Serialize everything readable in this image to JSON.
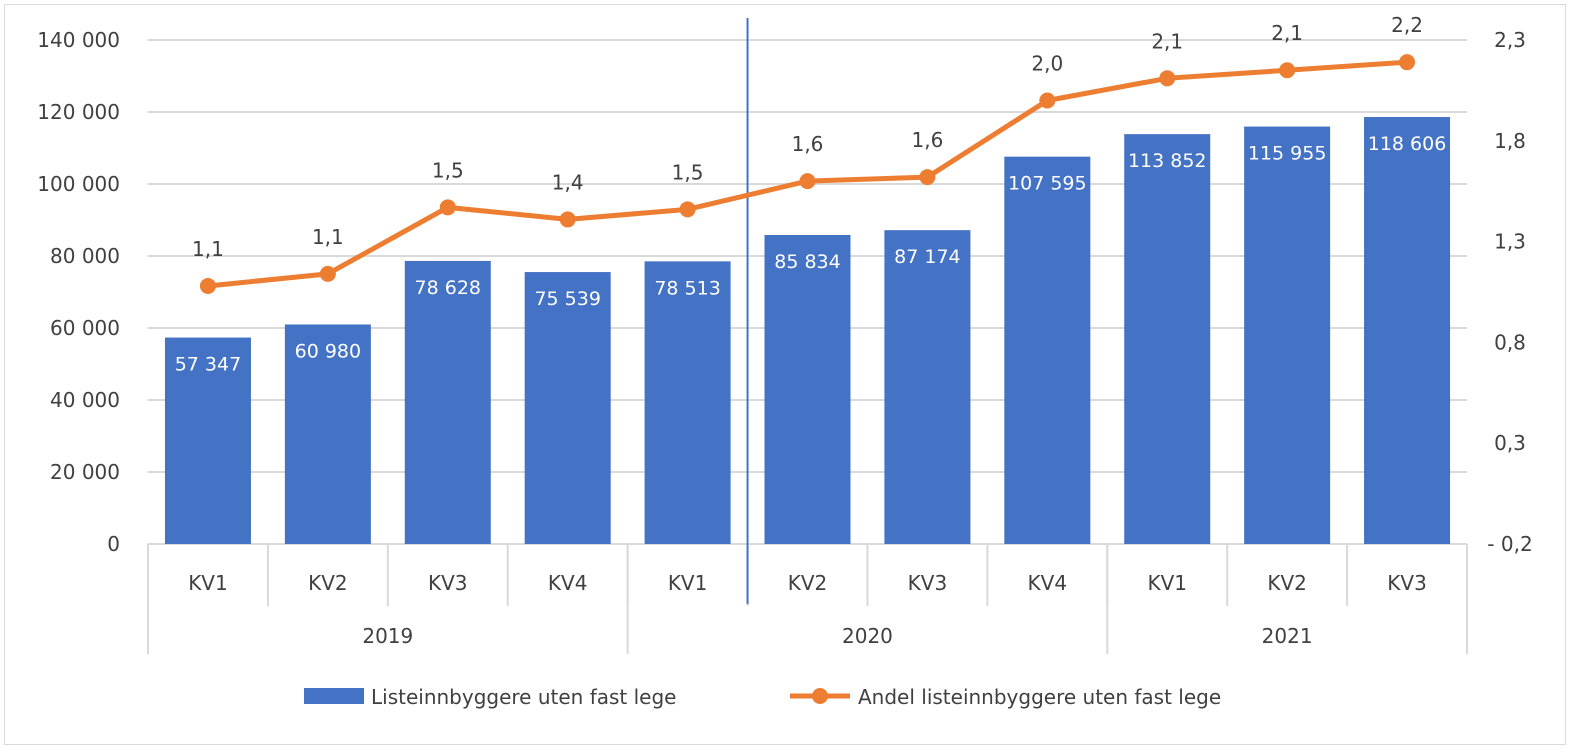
{
  "chart_data": {
    "type": "bar+line",
    "groups": [
      {
        "label": "2019",
        "quarters": [
          "KV1",
          "KV2",
          "KV3",
          "KV4"
        ]
      },
      {
        "label": "2020",
        "quarters": [
          "KV1",
          "KV2",
          "KV3",
          "KV4"
        ]
      },
      {
        "label": "2021",
        "quarters": [
          "KV1",
          "KV2",
          "KV3"
        ]
      }
    ],
    "categories": [
      "2019 KV1",
      "2019 KV2",
      "2019 KV3",
      "2019 KV4",
      "2020 KV1",
      "2020 KV2",
      "2020 KV3",
      "2020 KV4",
      "2021 KV1",
      "2021 KV2",
      "2021 KV3"
    ],
    "series": [
      {
        "name": "Listeinnbyggere uten fast lege",
        "type": "bar",
        "axis": "left",
        "color": "#4472C4",
        "values": [
          57347,
          60980,
          78628,
          75539,
          78513,
          85834,
          87174,
          107595,
          113852,
          115955,
          118606
        ],
        "labels": [
          "57 347",
          "60 980",
          "78 628",
          "75 539",
          "78 513",
          "85 834",
          "87 174",
          "107 595",
          "113 852",
          "115 955",
          "118 606"
        ]
      },
      {
        "name": "Andel listeinnbyggere uten fast lege",
        "type": "line",
        "axis": "right",
        "color": "#ED7D31",
        "values": [
          1.08,
          1.14,
          1.47,
          1.41,
          1.46,
          1.6,
          1.62,
          2.0,
          2.11,
          2.15,
          2.19
        ],
        "labels": [
          "1,1",
          "1,1",
          "1,5",
          "1,4",
          "1,5",
          "1,6",
          "1,6",
          "2,0",
          "2,1",
          "2,1",
          "2,2"
        ]
      }
    ],
    "left_axis": {
      "ylim": [
        0,
        140000
      ],
      "ticks": [
        "0",
        "20 000",
        "40 000",
        "60 000",
        "80 000",
        "100 000",
        "120 000",
        "140 000"
      ]
    },
    "right_axis": {
      "ylim": [
        -0.2,
        2.3
      ],
      "ticks": [
        "- 0,2",
        "0,3",
        "0,8",
        "1,3",
        "1,8",
        "2,3"
      ]
    },
    "marker_line": {
      "between": [
        "2020 KV1",
        "2020 KV2"
      ],
      "color": "#4472C4"
    },
    "grid": true,
    "legend": "bottom"
  }
}
